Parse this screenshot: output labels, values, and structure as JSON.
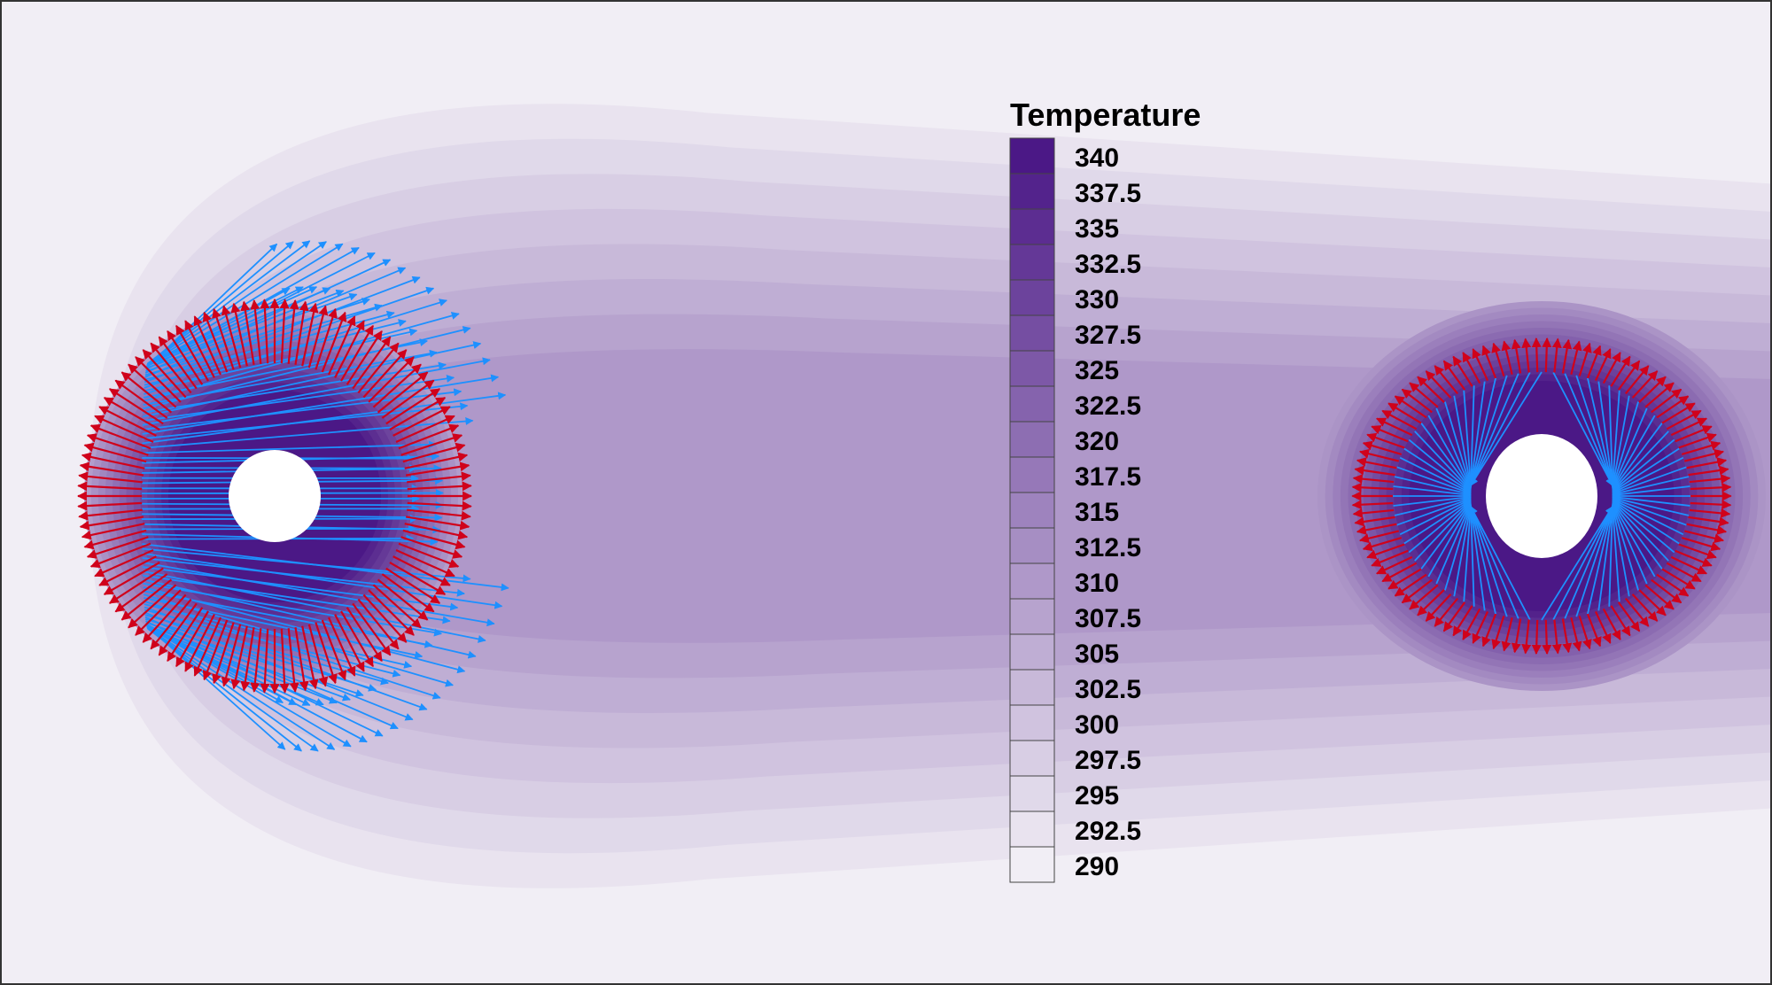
{
  "legend": {
    "title": "Temperature",
    "levels": [
      "340",
      "337.5",
      "335",
      "332.5",
      "330",
      "327.5",
      "325",
      "322.5",
      "320",
      "317.5",
      "315",
      "312.5",
      "310",
      "307.5",
      "305",
      "302.5",
      "300",
      "297.5",
      "295",
      "292.5",
      "290"
    ],
    "color_max": "#4b1886",
    "color_min": "#f1eef5"
  },
  "colors": {
    "background": "#f1eef5",
    "normal_vectors": "#d0021b",
    "flux_vectors": "#1e90ff",
    "hole": "#ffffff",
    "frame": "#333333"
  }
}
